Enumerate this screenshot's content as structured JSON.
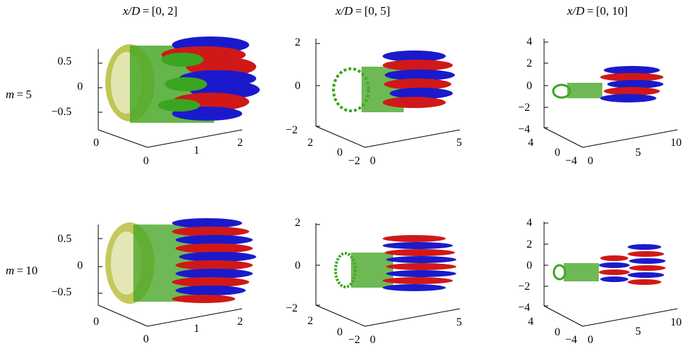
{
  "columns": [
    {
      "label": "x/D = [0, 2]"
    },
    {
      "label": "x/D = [0, 5]"
    },
    {
      "label": "x/D = [0, 10]"
    }
  ],
  "rows": [
    {
      "label": "m = 5"
    },
    {
      "label": "m = 10"
    }
  ],
  "panels": [
    {
      "z_ticks": [
        "0.5",
        "0",
        "−0.5"
      ],
      "y_ticks": [
        "0",
        "0"
      ],
      "x_ticks": [
        "1",
        "2"
      ]
    },
    {
      "z_ticks": [
        "2",
        "0",
        "−2"
      ],
      "y_ticks": [
        "2",
        "0",
        "−2"
      ],
      "x_ticks": [
        "0",
        "5"
      ]
    },
    {
      "z_ticks": [
        "4",
        "2",
        "0",
        "−2",
        "−4"
      ],
      "y_ticks": [
        "4",
        "0",
        "−4"
      ],
      "x_ticks": [
        "0",
        "5",
        "10"
      ]
    }
  ],
  "colors": {
    "red": "#d01818",
    "blue": "#1a1acc",
    "green": "#3aa51e",
    "yellow": "#c8c030"
  }
}
